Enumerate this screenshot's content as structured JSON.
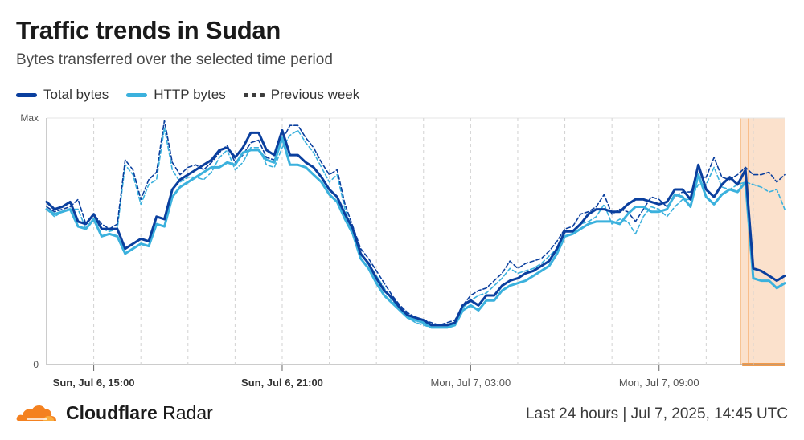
{
  "header": {
    "title": "Traffic trends in Sudan",
    "subtitle": "Bytes transferred over the selected time period"
  },
  "legend": [
    {
      "label": "Total bytes",
      "color": "#0a3f9e",
      "style": "solid"
    },
    {
      "label": "HTTP bytes",
      "color": "#3bb1dd",
      "style": "solid"
    },
    {
      "label": "Previous week",
      "color": "#3d3d3d",
      "style": "dashed"
    }
  ],
  "footer": {
    "brand_prefix": "Cloudflare",
    "brand_suffix": "Radar",
    "timestamp": "Last 24 hours | Jul 7, 2025, 14:45 UTC"
  },
  "chart_data": {
    "type": "line",
    "title": "Traffic trends in Sudan",
    "subtitle": "Bytes transferred over the selected time period",
    "y_ticks": [
      "Max",
      "0"
    ],
    "ylim": [
      0,
      1
    ],
    "x_ticks": [
      {
        "label": "Sun, Jul 6, 15:00",
        "index": 6,
        "bold": true
      },
      {
        "label": "Sun, Jul 6, 21:00",
        "index": 30,
        "bold": true
      },
      {
        "label": "Mon, Jul 7, 03:00",
        "index": 54,
        "bold": false
      },
      {
        "label": "Mon, Jul 7, 09:00",
        "index": 78,
        "bold": false
      }
    ],
    "interval_minutes": 15,
    "points": 95,
    "highlight_range": [
      89,
      94
    ],
    "series": [
      {
        "name": "Total bytes",
        "color": "#0a3f9e",
        "style": "solid",
        "values": [
          0.66,
          0.63,
          0.64,
          0.66,
          0.58,
          0.57,
          0.61,
          0.55,
          0.55,
          0.55,
          0.47,
          0.49,
          0.51,
          0.5,
          0.6,
          0.59,
          0.71,
          0.75,
          0.77,
          0.79,
          0.81,
          0.83,
          0.87,
          0.88,
          0.84,
          0.88,
          0.94,
          0.94,
          0.87,
          0.85,
          0.95,
          0.85,
          0.85,
          0.82,
          0.8,
          0.76,
          0.71,
          0.68,
          0.61,
          0.55,
          0.45,
          0.41,
          0.35,
          0.3,
          0.27,
          0.23,
          0.2,
          0.19,
          0.18,
          0.16,
          0.16,
          0.16,
          0.17,
          0.24,
          0.26,
          0.24,
          0.28,
          0.28,
          0.32,
          0.34,
          0.35,
          0.37,
          0.38,
          0.4,
          0.42,
          0.47,
          0.54,
          0.54,
          0.57,
          0.61,
          0.63,
          0.63,
          0.62,
          0.62,
          0.65,
          0.67,
          0.67,
          0.66,
          0.65,
          0.66,
          0.71,
          0.71,
          0.67,
          0.81,
          0.71,
          0.68,
          0.73,
          0.76,
          0.73,
          0.79,
          0.39,
          0.38,
          0.36,
          0.34,
          0.36
        ]
      },
      {
        "name": "HTTP bytes",
        "color": "#3bb1dd",
        "style": "solid",
        "values": [
          0.63,
          0.61,
          0.62,
          0.63,
          0.56,
          0.55,
          0.59,
          0.52,
          0.53,
          0.52,
          0.45,
          0.47,
          0.49,
          0.48,
          0.57,
          0.56,
          0.68,
          0.72,
          0.74,
          0.76,
          0.78,
          0.8,
          0.8,
          0.82,
          0.81,
          0.86,
          0.87,
          0.87,
          0.83,
          0.82,
          0.92,
          0.81,
          0.81,
          0.8,
          0.77,
          0.74,
          0.69,
          0.66,
          0.59,
          0.53,
          0.43,
          0.39,
          0.33,
          0.28,
          0.25,
          0.22,
          0.19,
          0.18,
          0.17,
          0.15,
          0.15,
          0.15,
          0.16,
          0.22,
          0.24,
          0.22,
          0.26,
          0.26,
          0.3,
          0.32,
          0.33,
          0.34,
          0.36,
          0.38,
          0.4,
          0.45,
          0.52,
          0.53,
          0.55,
          0.57,
          0.58,
          0.58,
          0.58,
          0.57,
          0.61,
          0.64,
          0.64,
          0.62,
          0.62,
          0.63,
          0.69,
          0.68,
          0.64,
          0.77,
          0.68,
          0.65,
          0.69,
          0.71,
          0.7,
          0.74,
          0.35,
          0.34,
          0.34,
          0.31,
          0.33
        ]
      },
      {
        "name": "Previous week (Total bytes)",
        "color": "#0a3f9e",
        "style": "dashed",
        "values": [
          0.64,
          0.62,
          0.63,
          0.64,
          0.67,
          0.57,
          0.61,
          0.57,
          0.55,
          0.57,
          0.83,
          0.79,
          0.67,
          0.75,
          0.78,
          0.99,
          0.82,
          0.77,
          0.8,
          0.81,
          0.79,
          0.82,
          0.86,
          0.89,
          0.82,
          0.85,
          0.9,
          0.91,
          0.84,
          0.83,
          0.91,
          0.97,
          0.97,
          0.92,
          0.88,
          0.82,
          0.77,
          0.79,
          0.65,
          0.56,
          0.47,
          0.43,
          0.38,
          0.33,
          0.28,
          0.24,
          0.21,
          0.19,
          0.18,
          0.17,
          0.16,
          0.17,
          0.18,
          0.24,
          0.28,
          0.3,
          0.31,
          0.34,
          0.37,
          0.42,
          0.39,
          0.41,
          0.42,
          0.43,
          0.46,
          0.5,
          0.55,
          0.56,
          0.61,
          0.62,
          0.64,
          0.69,
          0.61,
          0.63,
          0.62,
          0.58,
          0.63,
          0.68,
          0.67,
          0.64,
          0.68,
          0.7,
          0.7,
          0.76,
          0.76,
          0.84,
          0.76,
          0.75,
          0.77,
          0.8,
          0.77,
          0.77,
          0.78,
          0.74,
          0.77
        ]
      },
      {
        "name": "Previous week (HTTP bytes)",
        "color": "#3bb1dd",
        "style": "dashed",
        "values": [
          0.63,
          0.6,
          0.62,
          0.63,
          0.63,
          0.55,
          0.59,
          0.55,
          0.54,
          0.55,
          0.81,
          0.77,
          0.65,
          0.73,
          0.75,
          0.96,
          0.79,
          0.74,
          0.76,
          0.76,
          0.75,
          0.78,
          0.84,
          0.87,
          0.79,
          0.82,
          0.88,
          0.88,
          0.81,
          0.8,
          0.88,
          0.93,
          0.95,
          0.9,
          0.86,
          0.8,
          0.74,
          0.77,
          0.63,
          0.54,
          0.45,
          0.41,
          0.36,
          0.31,
          0.26,
          0.22,
          0.19,
          0.17,
          0.16,
          0.15,
          0.15,
          0.15,
          0.17,
          0.23,
          0.26,
          0.28,
          0.29,
          0.32,
          0.35,
          0.39,
          0.37,
          0.38,
          0.39,
          0.41,
          0.44,
          0.47,
          0.52,
          0.53,
          0.57,
          0.58,
          0.6,
          0.65,
          0.57,
          0.59,
          0.58,
          0.53,
          0.6,
          0.64,
          0.63,
          0.6,
          0.64,
          0.67,
          0.67,
          0.73,
          0.73,
          0.8,
          0.72,
          0.71,
          0.73,
          0.74,
          0.73,
          0.72,
          0.7,
          0.71,
          0.63
        ]
      }
    ]
  }
}
